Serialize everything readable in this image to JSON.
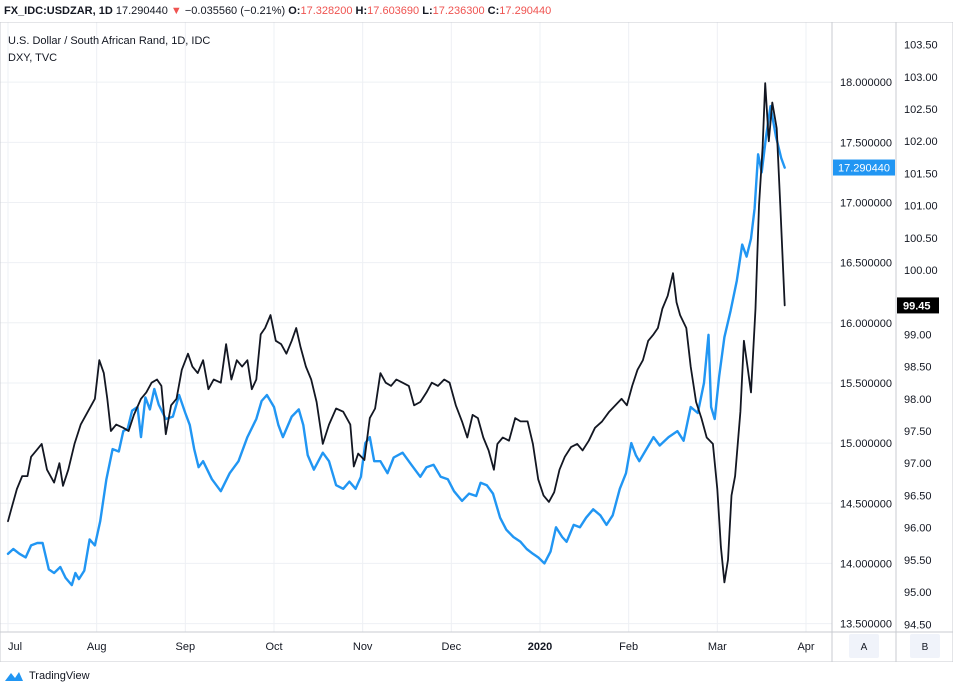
{
  "header": {
    "symbol": "FX_IDC:USDZAR, 1D",
    "last": "17.290440",
    "change": "−0.035560 (−0.21%)",
    "open_label": "O:",
    "open": "17.328200",
    "high_label": "H:",
    "high": "17.603690",
    "low_label": "L:",
    "low": "17.236300",
    "close_label": "C:",
    "close": "17.290440",
    "colors": {
      "down": "#ef5350"
    }
  },
  "legend": {
    "main_title": "U.S. Dollar / South African Rand, 1D, IDC",
    "overlay_title": "DXY, TVC"
  },
  "footer": {
    "brand": "TradingView"
  },
  "axis_buttons": {
    "left": "A",
    "right": "B"
  },
  "chart_data": {
    "type": "line",
    "x_labels": [
      "Jul",
      "Aug",
      "Sep",
      "Oct",
      "Nov",
      "Dec",
      "2020",
      "Feb",
      "Mar",
      "Apr"
    ],
    "x_label_bold": "2020",
    "x_label_positions": [
      0.0,
      1.0,
      2.0,
      3.0,
      4.0,
      5.0,
      6.0,
      7.0,
      8.0,
      9.0
    ],
    "xlim": [
      0.0,
      9.35
    ],
    "primary_axis": {
      "ticks": [
        "13.500000",
        "14.000000",
        "14.500000",
        "15.000000",
        "15.500000",
        "16.000000",
        "16.500000",
        "17.000000",
        "17.500000",
        "18.000000"
      ],
      "tick_values": [
        13.5,
        14.0,
        14.5,
        15.0,
        15.5,
        16.0,
        16.5,
        17.0,
        17.5,
        18.0
      ],
      "ylim": [
        13.43,
        18.5
      ],
      "current_label": "17.290440",
      "current_value": 17.29044
    },
    "secondary_axis": {
      "ticks": [
        "94.50",
        "95.00",
        "95.50",
        "96.00",
        "96.50",
        "97.00",
        "97.50",
        "98.00",
        "98.50",
        "99.00",
        "99.50",
        "100.00",
        "100.50",
        "101.00",
        "101.50",
        "102.00",
        "102.50",
        "103.00",
        "103.50"
      ],
      "tick_values": [
        94.5,
        95.0,
        95.5,
        96.0,
        96.5,
        97.0,
        97.5,
        98.0,
        98.5,
        99.0,
        99.5,
        100.0,
        100.5,
        101.0,
        101.5,
        102.0,
        102.5,
        103.0,
        103.5
      ],
      "ylim": [
        94.38,
        103.85
      ],
      "current_label": "99.45",
      "current_value": 99.45
    },
    "grid": true,
    "series": [
      {
        "axis": "primary",
        "color": "#2196f3",
        "points": [
          [
            0.0,
            14.08
          ],
          [
            0.06,
            14.12
          ],
          [
            0.13,
            14.08
          ],
          [
            0.2,
            14.05
          ],
          [
            0.26,
            14.15
          ],
          [
            0.33,
            14.17
          ],
          [
            0.39,
            14.17
          ],
          [
            0.46,
            13.95
          ],
          [
            0.52,
            13.92
          ],
          [
            0.59,
            13.97
          ],
          [
            0.65,
            13.88
          ],
          [
            0.72,
            13.82
          ],
          [
            0.76,
            13.92
          ],
          [
            0.8,
            13.87
          ],
          [
            0.86,
            13.94
          ],
          [
            0.92,
            14.2
          ],
          [
            0.98,
            14.15
          ],
          [
            1.04,
            14.35
          ],
          [
            1.11,
            14.7
          ],
          [
            1.18,
            14.95
          ],
          [
            1.25,
            14.93
          ],
          [
            1.3,
            15.1
          ],
          [
            1.35,
            15.12
          ],
          [
            1.4,
            15.27
          ],
          [
            1.46,
            15.3
          ],
          [
            1.5,
            15.05
          ],
          [
            1.55,
            15.38
          ],
          [
            1.6,
            15.28
          ],
          [
            1.65,
            15.45
          ],
          [
            1.7,
            15.32
          ],
          [
            1.78,
            15.2
          ],
          [
            1.86,
            15.22
          ],
          [
            1.93,
            15.4
          ],
          [
            2.0,
            15.25
          ],
          [
            2.05,
            15.15
          ],
          [
            2.1,
            14.95
          ],
          [
            2.15,
            14.8
          ],
          [
            2.2,
            14.85
          ],
          [
            2.3,
            14.7
          ],
          [
            2.4,
            14.6
          ],
          [
            2.5,
            14.75
          ],
          [
            2.6,
            14.85
          ],
          [
            2.7,
            15.05
          ],
          [
            2.8,
            15.2
          ],
          [
            2.86,
            15.35
          ],
          [
            2.92,
            15.4
          ],
          [
            3.0,
            15.3
          ],
          [
            3.05,
            15.15
          ],
          [
            3.1,
            15.05
          ],
          [
            3.2,
            15.22
          ],
          [
            3.28,
            15.28
          ],
          [
            3.33,
            15.15
          ],
          [
            3.38,
            14.9
          ],
          [
            3.45,
            14.78
          ],
          [
            3.55,
            14.92
          ],
          [
            3.62,
            14.85
          ],
          [
            3.7,
            14.65
          ],
          [
            3.78,
            14.62
          ],
          [
            3.85,
            14.68
          ],
          [
            3.92,
            14.62
          ],
          [
            3.98,
            14.72
          ],
          [
            4.03,
            15.0
          ],
          [
            4.08,
            15.05
          ],
          [
            4.13,
            14.85
          ],
          [
            4.2,
            14.85
          ],
          [
            4.28,
            14.75
          ],
          [
            4.35,
            14.88
          ],
          [
            4.45,
            14.92
          ],
          [
            4.55,
            14.82
          ],
          [
            4.65,
            14.72
          ],
          [
            4.72,
            14.8
          ],
          [
            4.8,
            14.82
          ],
          [
            4.88,
            14.72
          ],
          [
            4.96,
            14.7
          ],
          [
            5.03,
            14.6
          ],
          [
            5.12,
            14.52
          ],
          [
            5.2,
            14.58
          ],
          [
            5.28,
            14.56
          ],
          [
            5.33,
            14.67
          ],
          [
            5.4,
            14.65
          ],
          [
            5.47,
            14.58
          ],
          [
            5.55,
            14.38
          ],
          [
            5.62,
            14.28
          ],
          [
            5.7,
            14.22
          ],
          [
            5.78,
            14.18
          ],
          [
            5.85,
            14.12
          ],
          [
            5.92,
            14.08
          ],
          [
            5.98,
            14.05
          ],
          [
            6.05,
            14.0
          ],
          [
            6.12,
            14.1
          ],
          [
            6.18,
            14.3
          ],
          [
            6.25,
            14.22
          ],
          [
            6.3,
            14.18
          ],
          [
            6.38,
            14.32
          ],
          [
            6.45,
            14.3
          ],
          [
            6.52,
            14.38
          ],
          [
            6.6,
            14.45
          ],
          [
            6.68,
            14.4
          ],
          [
            6.75,
            14.32
          ],
          [
            6.82,
            14.4
          ],
          [
            6.9,
            14.62
          ],
          [
            6.97,
            14.75
          ],
          [
            7.03,
            15.0
          ],
          [
            7.08,
            14.9
          ],
          [
            7.12,
            14.85
          ],
          [
            7.2,
            14.95
          ],
          [
            7.28,
            15.05
          ],
          [
            7.35,
            14.98
          ],
          [
            7.45,
            15.05
          ],
          [
            7.55,
            15.1
          ],
          [
            7.62,
            15.02
          ],
          [
            7.7,
            15.3
          ],
          [
            7.78,
            15.25
          ],
          [
            7.85,
            15.5
          ],
          [
            7.9,
            15.9
          ],
          [
            7.93,
            15.3
          ],
          [
            7.97,
            15.2
          ],
          [
            8.02,
            15.55
          ],
          [
            8.08,
            15.88
          ],
          [
            8.15,
            16.1
          ],
          [
            8.22,
            16.35
          ],
          [
            8.28,
            16.65
          ],
          [
            8.33,
            16.55
          ],
          [
            8.38,
            16.7
          ],
          [
            8.42,
            16.95
          ],
          [
            8.46,
            17.4
          ],
          [
            8.5,
            17.25
          ],
          [
            8.55,
            17.55
          ],
          [
            8.6,
            17.8
          ],
          [
            8.66,
            17.55
          ],
          [
            8.72,
            17.37
          ],
          [
            8.76,
            17.29
          ]
        ]
      },
      {
        "axis": "secondary",
        "color": "#131722",
        "points": [
          [
            0.0,
            96.1
          ],
          [
            0.04,
            96.3
          ],
          [
            0.1,
            96.6
          ],
          [
            0.16,
            96.8
          ],
          [
            0.22,
            96.8
          ],
          [
            0.26,
            97.1
          ],
          [
            0.32,
            97.2
          ],
          [
            0.38,
            97.3
          ],
          [
            0.44,
            96.9
          ],
          [
            0.52,
            96.7
          ],
          [
            0.58,
            97.0
          ],
          [
            0.62,
            96.65
          ],
          [
            0.68,
            96.9
          ],
          [
            0.75,
            97.3
          ],
          [
            0.82,
            97.6
          ],
          [
            0.9,
            97.8
          ],
          [
            0.98,
            98.0
          ],
          [
            1.03,
            98.6
          ],
          [
            1.08,
            98.4
          ],
          [
            1.12,
            98.0
          ],
          [
            1.16,
            97.5
          ],
          [
            1.22,
            97.6
          ],
          [
            1.3,
            97.55
          ],
          [
            1.36,
            97.5
          ],
          [
            1.42,
            97.75
          ],
          [
            1.5,
            98.0
          ],
          [
            1.56,
            98.1
          ],
          [
            1.62,
            98.25
          ],
          [
            1.68,
            98.3
          ],
          [
            1.73,
            98.2
          ],
          [
            1.78,
            97.45
          ],
          [
            1.84,
            97.9
          ],
          [
            1.9,
            98.0
          ],
          [
            1.96,
            98.45
          ],
          [
            2.03,
            98.7
          ],
          [
            2.08,
            98.5
          ],
          [
            2.14,
            98.4
          ],
          [
            2.2,
            98.6
          ],
          [
            2.26,
            98.15
          ],
          [
            2.32,
            98.3
          ],
          [
            2.4,
            98.25
          ],
          [
            2.46,
            98.85
          ],
          [
            2.52,
            98.3
          ],
          [
            2.58,
            98.6
          ],
          [
            2.64,
            98.5
          ],
          [
            2.7,
            98.6
          ],
          [
            2.75,
            98.15
          ],
          [
            2.8,
            98.3
          ],
          [
            2.85,
            99.0
          ],
          [
            2.9,
            99.1
          ],
          [
            2.96,
            99.3
          ],
          [
            3.02,
            98.9
          ],
          [
            3.08,
            98.85
          ],
          [
            3.14,
            98.7
          ],
          [
            3.2,
            98.9
          ],
          [
            3.25,
            99.1
          ],
          [
            3.3,
            98.8
          ],
          [
            3.36,
            98.5
          ],
          [
            3.42,
            98.3
          ],
          [
            3.48,
            97.95
          ],
          [
            3.55,
            97.3
          ],
          [
            3.62,
            97.6
          ],
          [
            3.7,
            97.85
          ],
          [
            3.78,
            97.8
          ],
          [
            3.86,
            97.6
          ],
          [
            3.9,
            96.95
          ],
          [
            3.95,
            97.15
          ],
          [
            4.02,
            97.05
          ],
          [
            4.08,
            97.7
          ],
          [
            4.14,
            97.85
          ],
          [
            4.2,
            98.4
          ],
          [
            4.26,
            98.25
          ],
          [
            4.32,
            98.2
          ],
          [
            4.38,
            98.3
          ],
          [
            4.45,
            98.25
          ],
          [
            4.52,
            98.2
          ],
          [
            4.58,
            97.9
          ],
          [
            4.65,
            97.95
          ],
          [
            4.72,
            98.1
          ],
          [
            4.78,
            98.25
          ],
          [
            4.85,
            98.2
          ],
          [
            4.92,
            98.3
          ],
          [
            4.98,
            98.25
          ],
          [
            5.05,
            97.9
          ],
          [
            5.12,
            97.65
          ],
          [
            5.18,
            97.4
          ],
          [
            5.24,
            97.75
          ],
          [
            5.3,
            97.7
          ],
          [
            5.36,
            97.4
          ],
          [
            5.42,
            97.2
          ],
          [
            5.48,
            96.9
          ],
          [
            5.52,
            97.3
          ],
          [
            5.58,
            97.4
          ],
          [
            5.65,
            97.35
          ],
          [
            5.72,
            97.7
          ],
          [
            5.78,
            97.65
          ],
          [
            5.86,
            97.65
          ],
          [
            5.92,
            97.3
          ],
          [
            5.98,
            96.75
          ],
          [
            6.04,
            96.5
          ],
          [
            6.1,
            96.4
          ],
          [
            6.16,
            96.55
          ],
          [
            6.22,
            96.9
          ],
          [
            6.28,
            97.1
          ],
          [
            6.35,
            97.25
          ],
          [
            6.42,
            97.3
          ],
          [
            6.48,
            97.2
          ],
          [
            6.55,
            97.35
          ],
          [
            6.62,
            97.55
          ],
          [
            6.7,
            97.65
          ],
          [
            6.78,
            97.8
          ],
          [
            6.85,
            97.9
          ],
          [
            6.92,
            98.0
          ],
          [
            6.98,
            97.9
          ],
          [
            7.04,
            98.2
          ],
          [
            7.1,
            98.45
          ],
          [
            7.16,
            98.6
          ],
          [
            7.22,
            98.9
          ],
          [
            7.28,
            99.0
          ],
          [
            7.33,
            99.1
          ],
          [
            7.38,
            99.4
          ],
          [
            7.44,
            99.6
          ],
          [
            7.5,
            99.95
          ],
          [
            7.54,
            99.5
          ],
          [
            7.58,
            99.3
          ],
          [
            7.65,
            99.1
          ],
          [
            7.7,
            98.5
          ],
          [
            7.76,
            97.95
          ],
          [
            7.82,
            97.7
          ],
          [
            7.88,
            97.4
          ],
          [
            7.95,
            97.3
          ],
          [
            8.0,
            96.6
          ],
          [
            8.04,
            95.7
          ],
          [
            8.08,
            95.15
          ],
          [
            8.12,
            95.5
          ],
          [
            8.16,
            96.5
          ],
          [
            8.2,
            96.8
          ],
          [
            8.26,
            97.8
          ],
          [
            8.3,
            98.9
          ],
          [
            8.34,
            98.5
          ],
          [
            8.38,
            98.1
          ],
          [
            8.43,
            99.4
          ],
          [
            8.47,
            101.0
          ],
          [
            8.51,
            101.9
          ],
          [
            8.54,
            102.9
          ],
          [
            8.58,
            102.0
          ],
          [
            8.62,
            102.6
          ],
          [
            8.67,
            102.2
          ],
          [
            8.71,
            101.0
          ],
          [
            8.76,
            99.45
          ]
        ]
      }
    ]
  }
}
